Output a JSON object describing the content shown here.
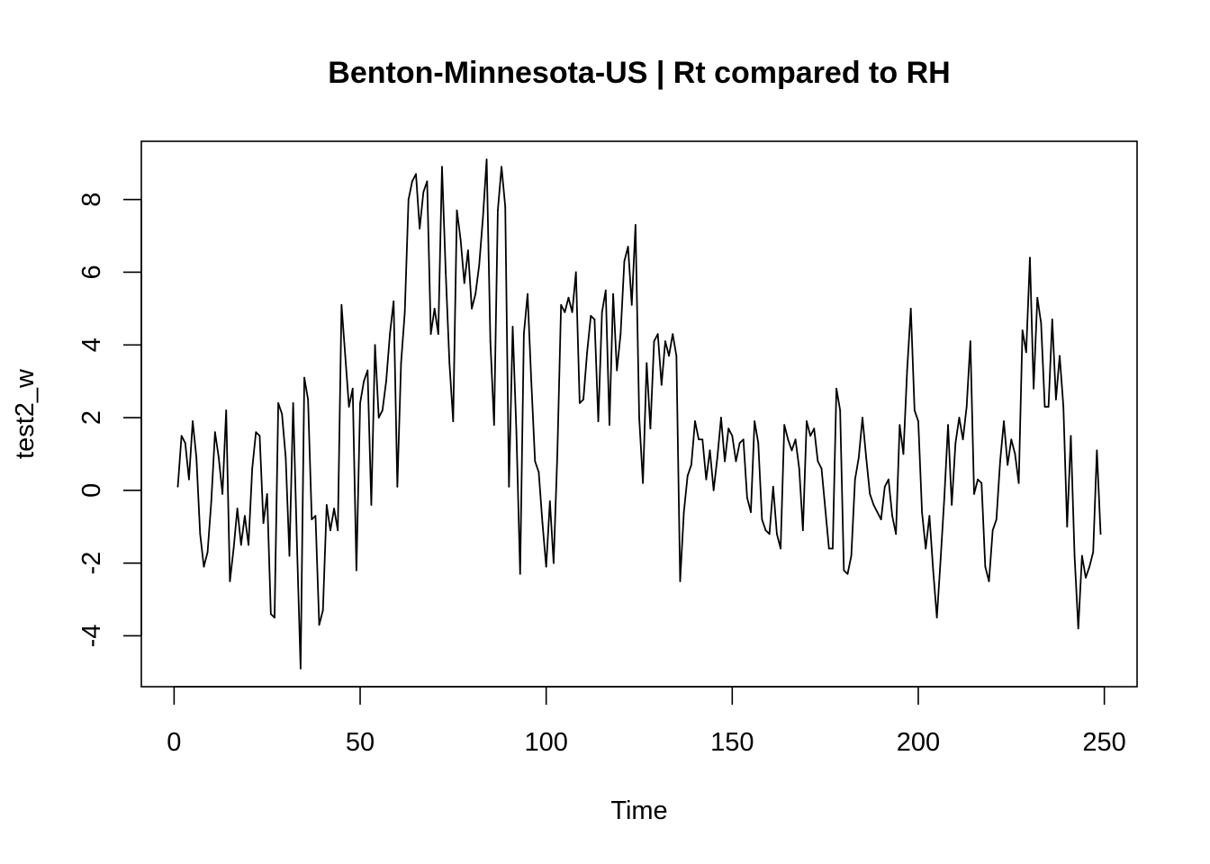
{
  "chart_data": {
    "type": "line",
    "title": "Benton-Minnesota-US | Rt compared to RH",
    "xlabel": "Time",
    "ylabel": "test2_w",
    "xlim": [
      -8.8,
      258.8
    ],
    "ylim": [
      -5.4,
      9.6
    ],
    "x_ticks": [
      0,
      50,
      100,
      150,
      200,
      250
    ],
    "y_ticks": [
      -4,
      -2,
      0,
      2,
      4,
      6,
      8
    ],
    "grid": false,
    "legend": "none",
    "series": [
      {
        "color": "#000000",
        "x_start": 1,
        "x_step": 1,
        "values": [
          0.1,
          1.5,
          1.3,
          0.3,
          1.9,
          0.9,
          -1.2,
          -2.1,
          -1.7,
          -0.3,
          1.6,
          0.9,
          -0.1,
          2.2,
          -2.5,
          -1.6,
          -0.5,
          -1.5,
          -0.7,
          -1.5,
          0.6,
          1.6,
          1.5,
          -0.9,
          -0.1,
          -3.4,
          -3.5,
          2.4,
          2.1,
          0.9,
          -1.8,
          2.4,
          -1.4,
          -4.9,
          3.1,
          2.5,
          -0.8,
          -0.7,
          -3.7,
          -3.3,
          -0.4,
          -1.1,
          -0.5,
          -1.1,
          5.1,
          3.7,
          2.3,
          2.8,
          -2.2,
          2.4,
          3.0,
          3.3,
          -0.4,
          4.0,
          2.0,
          2.2,
          3.0,
          4.3,
          5.2,
          0.1,
          3.5,
          4.9,
          8.0,
          8.5,
          8.7,
          7.2,
          8.2,
          8.5,
          4.3,
          5.0,
          4.3,
          8.9,
          6.0,
          3.5,
          1.9,
          7.7,
          6.9,
          5.7,
          6.6,
          5.0,
          5.4,
          6.2,
          7.5,
          9.1,
          4.1,
          1.8,
          7.7,
          8.9,
          7.8,
          0.1,
          4.5,
          1.6,
          -2.3,
          4.3,
          5.4,
          3.0,
          0.8,
          0.5,
          -0.9,
          -2.1,
          -0.3,
          -2.0,
          1.0,
          5.1,
          4.9,
          5.3,
          4.9,
          6.0,
          2.4,
          2.5,
          3.8,
          4.8,
          4.7,
          1.9,
          4.9,
          5.5,
          1.8,
          5.4,
          3.3,
          4.3,
          6.3,
          6.7,
          5.1,
          7.3,
          2.0,
          0.2,
          3.5,
          1.7,
          4.1,
          4.3,
          2.9,
          4.1,
          3.7,
          4.3,
          3.7,
          -2.5,
          -0.6,
          0.4,
          0.7,
          1.9,
          1.4,
          1.4,
          0.3,
          1.1,
          0.0,
          0.9,
          2.0,
          0.8,
          1.7,
          1.5,
          0.8,
          1.3,
          1.4,
          -0.2,
          -0.6,
          1.9,
          1.3,
          -0.8,
          -1.1,
          -1.2,
          0.1,
          -1.2,
          -1.6,
          1.8,
          1.4,
          1.1,
          1.4,
          0.6,
          -1.1,
          1.9,
          1.5,
          1.7,
          0.8,
          0.6,
          -0.5,
          -1.6,
          -1.6,
          2.8,
          2.2,
          -2.2,
          -2.3,
          -1.8,
          0.3,
          0.9,
          2.0,
          0.9,
          -0.1,
          -0.4,
          -0.6,
          -0.8,
          0.1,
          0.3,
          -0.7,
          -1.2,
          1.8,
          1.0,
          3.3,
          5.0,
          2.2,
          1.9,
          -0.6,
          -1.6,
          -0.7,
          -2.2,
          -3.5,
          -1.9,
          -0.2,
          1.8,
          -0.4,
          1.3,
          2.0,
          1.4,
          2.3,
          4.1,
          -0.1,
          0.3,
          0.2,
          -2.1,
          -2.5,
          -1.1,
          -0.8,
          0.8,
          1.9,
          0.7,
          1.4,
          1.0,
          0.2,
          4.4,
          3.8,
          6.4,
          2.8,
          5.3,
          4.6,
          2.3,
          2.3,
          4.7,
          2.5,
          3.7,
          2.3,
          -1.0,
          1.5,
          -1.8,
          -3.8,
          -1.8,
          -2.4,
          -2.1,
          -1.7,
          1.1,
          -1.2
        ]
      }
    ]
  }
}
